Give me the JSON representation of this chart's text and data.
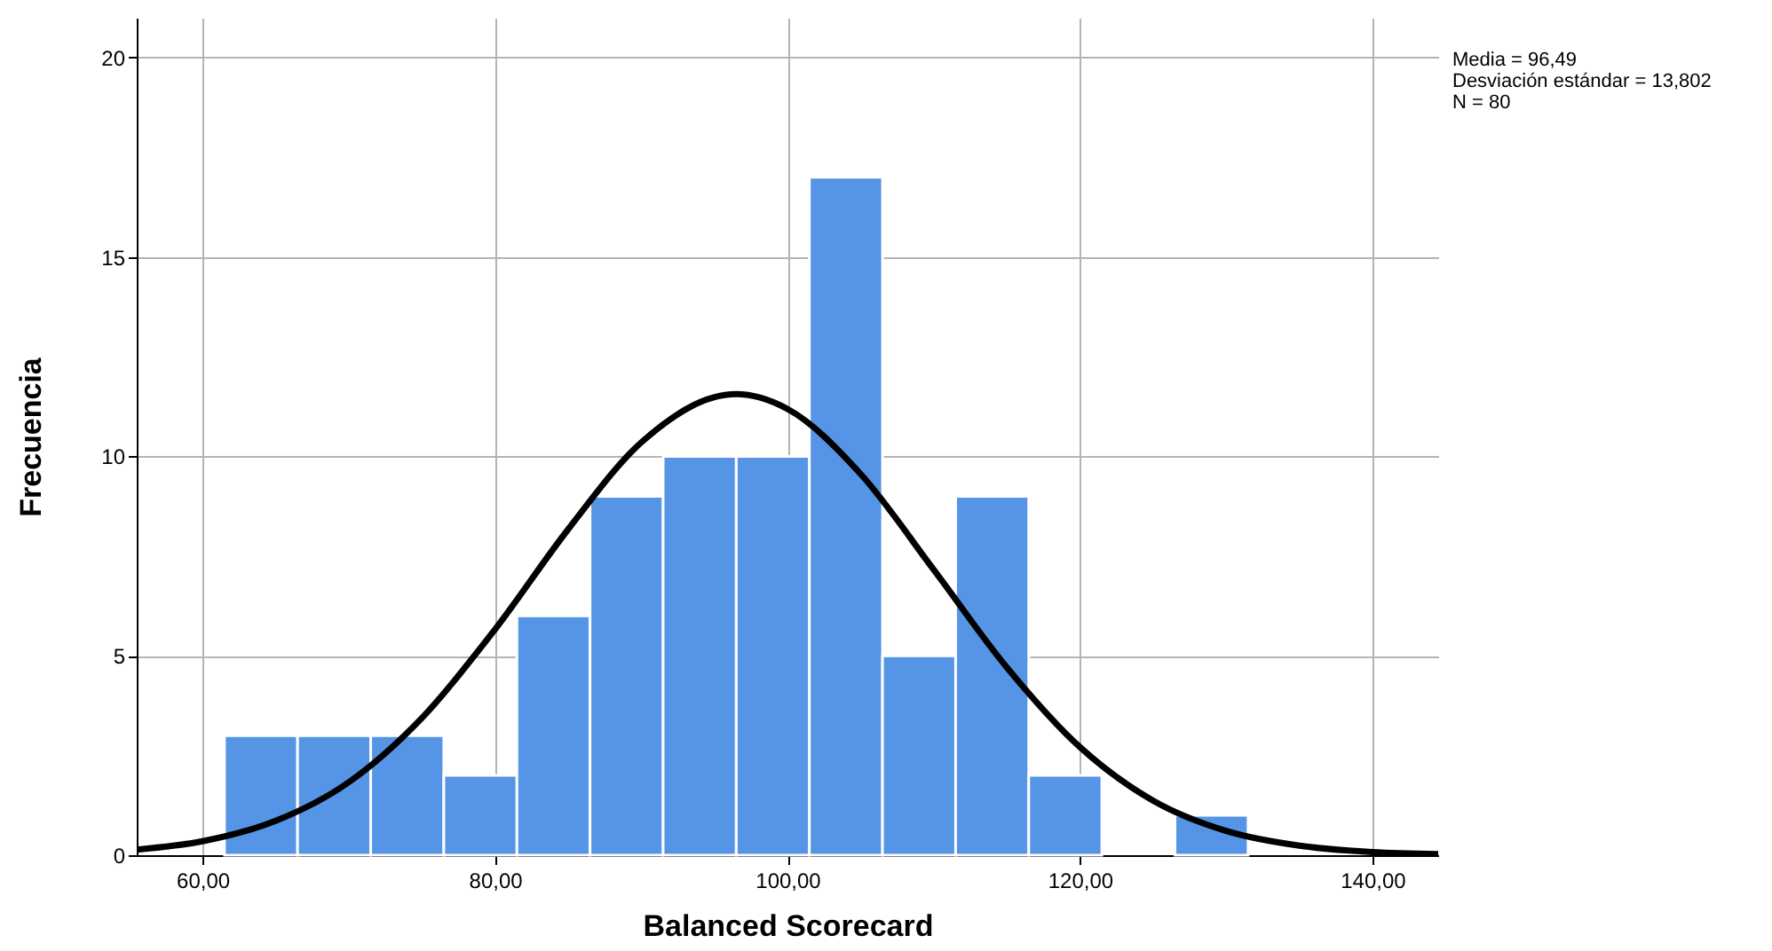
{
  "chart_data": {
    "type": "histogram",
    "xlabel": "Balanced Scorecard",
    "ylabel": "Frecuencia",
    "annotations": [
      "Media = 96,49",
      "Desviación estándar = 13,802",
      "N = 80"
    ],
    "bins": [
      61.5,
      66.5,
      71.5,
      76.5,
      81.5,
      86.5,
      91.5,
      96.5,
      101.5,
      106.5,
      111.5,
      116.5,
      121.5,
      126.5,
      131.5
    ],
    "series": [
      {
        "type": "histogram",
        "color": "#5694e6",
        "values": [
          3,
          3,
          3,
          2,
          6,
          9,
          10,
          10,
          17,
          5,
          9,
          2,
          0,
          1
        ]
      },
      {
        "type": "line",
        "color": "#000000",
        "x": [
          55.5,
          60,
          65,
          70,
          75,
          80,
          85,
          90,
          96.49,
          100,
          105,
          110,
          115,
          120,
          125,
          130,
          135,
          140,
          144.5
        ],
        "values": [
          0.14,
          0.35,
          0.86,
          1.83,
          3.44,
          5.66,
          8.17,
          10.35,
          11.56,
          11.19,
          9.56,
          7.16,
          4.71,
          2.71,
          1.37,
          0.61,
          0.24,
          0.08,
          0.03
        ]
      }
    ],
    "xlim": [
      55.5,
      144.5
    ],
    "xticks": [
      {
        "value": 60,
        "label": "60,00"
      },
      {
        "value": 80,
        "label": "80,00"
      },
      {
        "value": 100,
        "label": "100,00"
      },
      {
        "value": 120,
        "label": "120,00"
      },
      {
        "value": 140,
        "label": "140,00"
      }
    ],
    "ylim": [
      0,
      21
    ],
    "yticks": [
      0,
      5,
      10,
      15,
      20
    ],
    "grid": true
  }
}
